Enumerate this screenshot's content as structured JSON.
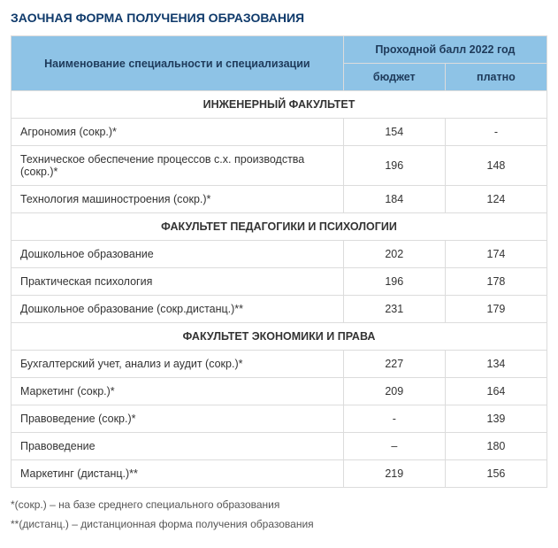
{
  "title": "ЗАОЧНАЯ ФОРМА ПОЛУЧЕНИЯ ОБРАЗОВАНИЯ",
  "header": {
    "name_col": "Наименование специальности и специализации",
    "score_group": "Проходной балл 2022 год",
    "budget": "бюджет",
    "paid": "платно"
  },
  "sections": [
    {
      "title": "ИНЖЕНЕРНЫЙ ФАКУЛЬТЕТ",
      "rows": [
        {
          "name": "Агрономия (сокр.)*",
          "budget": "154",
          "paid": "-"
        },
        {
          "name": "Техническое обеспечение процессов с.х. производства (сокр.)*",
          "budget": "196",
          "paid": "148"
        },
        {
          "name": "Технология машиностроения (сокр.)*",
          "budget": "184",
          "paid": "124"
        }
      ]
    },
    {
      "title": "ФАКУЛЬТЕТ ПЕДАГОГИКИ И ПСИХОЛОГИИ",
      "rows": [
        {
          "name": "Дошкольное образование",
          "budget": "202",
          "paid": "174"
        },
        {
          "name": "Практическая психология",
          "budget": "196",
          "paid": "178"
        },
        {
          "name": "Дошкольное образование (сокр.дистанц.)**",
          "budget": "231",
          "paid": "179"
        }
      ]
    },
    {
      "title": "ФАКУЛЬТЕТ ЭКОНОМИКИ И ПРАВА",
      "rows": [
        {
          "name": "Бухгалтерский учет, анализ и аудит (сокр.)*",
          "budget": "227",
          "paid": "134"
        },
        {
          "name": "Маркетинг (сокр.)*",
          "budget": "209",
          "paid": "164"
        },
        {
          "name": "Правоведение (сокр.)*",
          "budget": "-",
          "paid": "139"
        },
        {
          "name": "Правоведение",
          "budget": "–",
          "paid": "180"
        },
        {
          "name": "Маркетинг (дистанц.)**",
          "budget": "219",
          "paid": "156"
        }
      ]
    }
  ],
  "footnotes": [
    "*(сокр.) – на базе среднего специального образования",
    "**(дистанц.) – дистанционная форма получения образования"
  ],
  "style": {
    "header_bg": "#8ec3e6",
    "border_color": "#dcdcdc",
    "title_color": "#0f3a6b",
    "text_color": "#333333",
    "footnote_color": "#555555",
    "col_widths": {
      "name": "62%",
      "budget": "19%",
      "paid": "19%"
    }
  }
}
